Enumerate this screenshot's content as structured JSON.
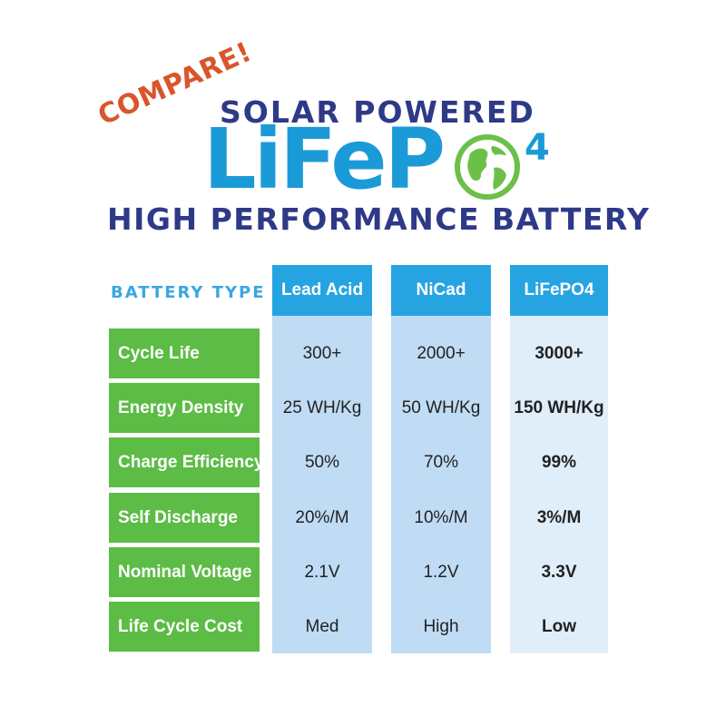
{
  "header": {
    "compare": "COMPARE!",
    "solar": "SOLAR POWERED",
    "logo_word": "LiFeP",
    "logo_sub": "4",
    "tagline": "HIGH PERFORMANCE BATTERY"
  },
  "table": {
    "type_label": "BATTERY TYPE",
    "columns": [
      "Lead Acid",
      "NiCad",
      "LiFePO4"
    ],
    "rows": [
      {
        "label": "Cycle Life",
        "values": [
          "300+",
          "2000+",
          "3000+"
        ]
      },
      {
        "label": "Energy Density",
        "values": [
          "25 WH/Kg",
          "50 WH/Kg",
          "150 WH/Kg"
        ]
      },
      {
        "label": "Charge Efficiency",
        "values": [
          "50%",
          "70%",
          "99%"
        ]
      },
      {
        "label": "Self Discharge",
        "values": [
          "20%/M",
          "10%/M",
          "3%/M"
        ]
      },
      {
        "label": "Nominal Voltage",
        "values": [
          "2.1V",
          "1.2V",
          "3.3V"
        ]
      },
      {
        "label": "Life Cycle Cost",
        "values": [
          "Med",
          "High",
          "Low"
        ]
      }
    ]
  },
  "colors": {
    "green": "#5cbc45",
    "blue_header": "#26a4e2",
    "navy": "#2e3a87",
    "orange": "#d9552b"
  }
}
